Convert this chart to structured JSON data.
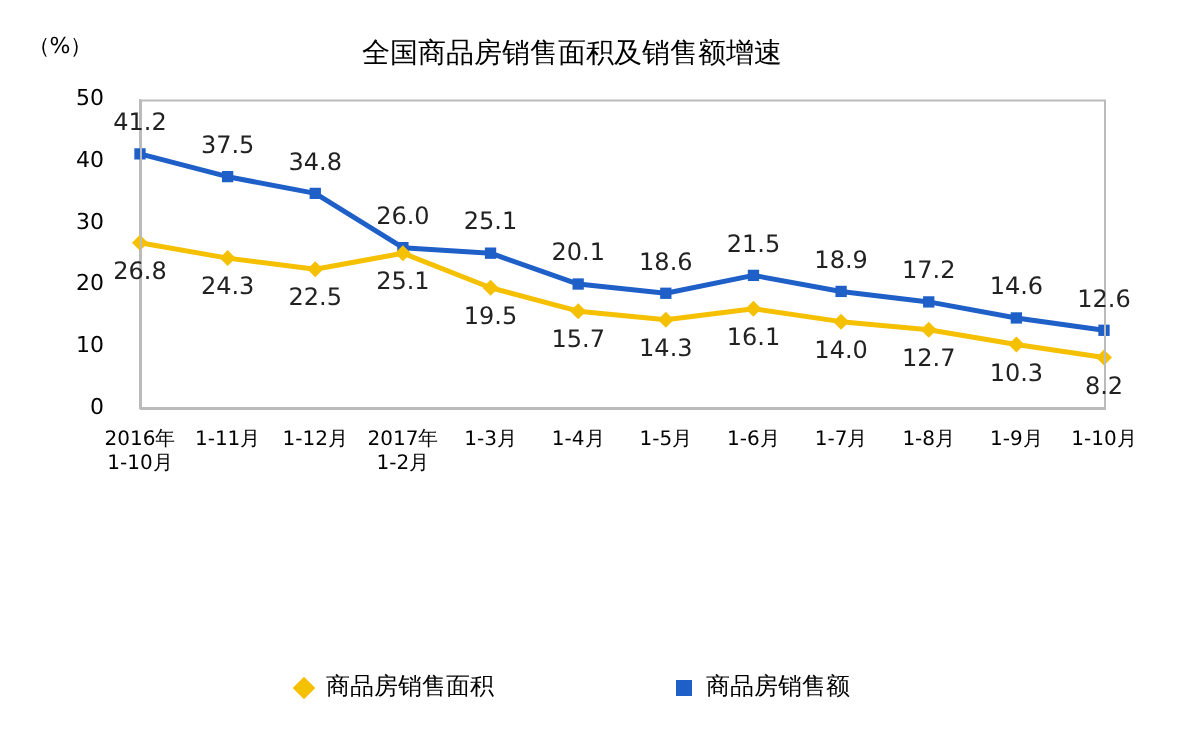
{
  "chart_data": {
    "type": "line",
    "title": "全国商品房销售面积及销售额增速",
    "ylabel": "（%）",
    "categories": [
      "2016年\n1-10月",
      "1-11月",
      "1-12月",
      "2017年\n1-2月",
      "1-3月",
      "1-4月",
      "1-5月",
      "1-6月",
      "1-7月",
      "1-8月",
      "1-9月",
      "1-10月"
    ],
    "series": [
      {
        "name": "商品房销售面积",
        "color": "#f5c000",
        "marker": "diamond",
        "values": [
          26.8,
          24.3,
          22.5,
          25.1,
          19.5,
          15.7,
          14.3,
          16.1,
          14.0,
          12.7,
          10.3,
          8.2
        ],
        "value_labels": [
          "26.8",
          "24.3",
          "22.5",
          "25.1",
          "19.5",
          "15.7",
          "14.3",
          "16.1",
          "14.0",
          "12.7",
          "10.3",
          "8.2"
        ]
      },
      {
        "name": "商品房销售额",
        "color": "#1f5fc8",
        "marker": "square",
        "values": [
          41.2,
          37.5,
          34.8,
          26.0,
          25.1,
          20.1,
          18.6,
          21.5,
          18.9,
          17.2,
          14.6,
          12.6
        ],
        "value_labels": [
          "41.2",
          "37.5",
          "34.8",
          "26.0",
          "25.1",
          "20.1",
          "18.6",
          "21.5",
          "18.9",
          "17.2",
          "14.6",
          "12.6"
        ]
      }
    ],
    "ylim": [
      0,
      50
    ],
    "yticks": [
      0,
      10,
      20,
      30,
      40,
      50
    ],
    "grid": false,
    "legend": "bottom",
    "line_style": "solid"
  }
}
